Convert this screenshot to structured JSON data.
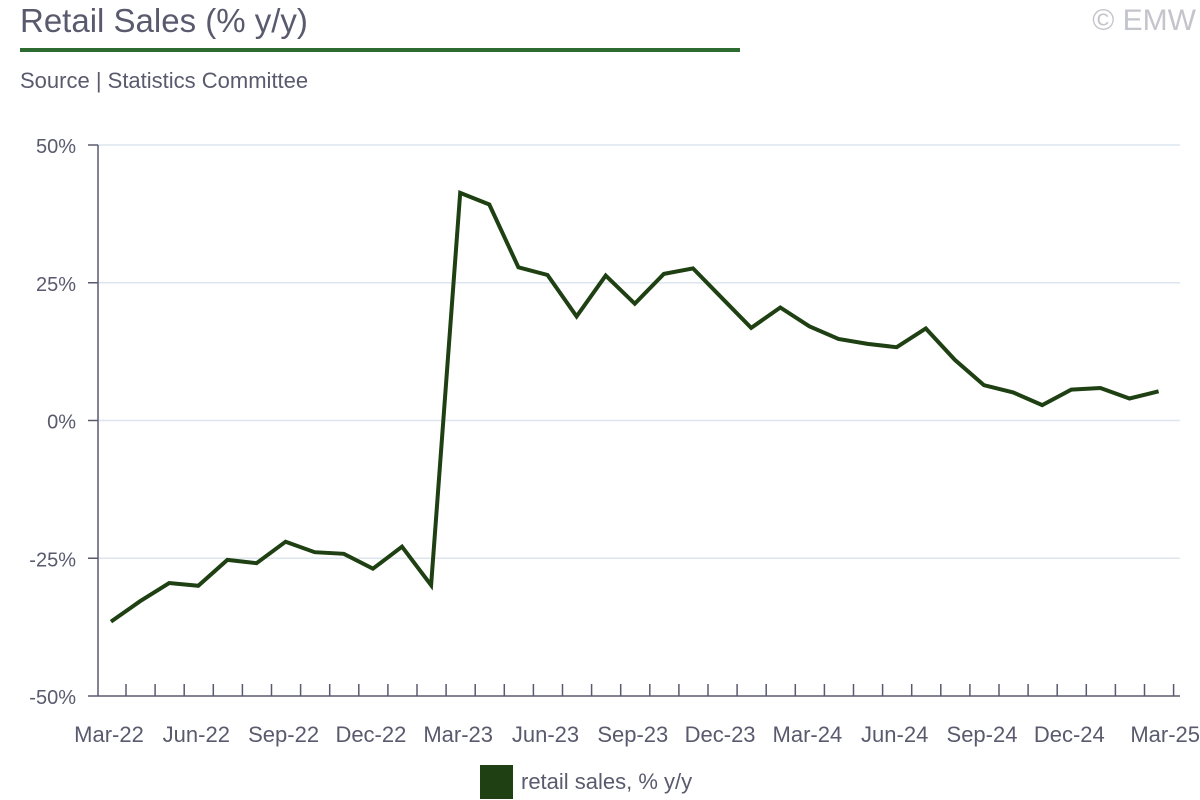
{
  "header": {
    "title": "Retail Sales (% y/y)",
    "subtitle": "Source | Statistics Committee",
    "copyright": "© EMW"
  },
  "colors": {
    "accent": "#2e6b30",
    "series": "#1e4012",
    "grid": "#dde6ef",
    "axis": "#5a5a6e"
  },
  "chart_data": {
    "type": "line",
    "title": "Retail Sales (% y/y)",
    "xlabel": "",
    "ylabel": "",
    "ylim": [
      -50,
      50
    ],
    "yticks": [
      50,
      25,
      0,
      -25,
      -50
    ],
    "ytick_labels": [
      "50%",
      "25%",
      "0%",
      "-25%",
      "-50%"
    ],
    "x_tick_labels": [
      "Mar-22",
      "Jun-22",
      "Sep-22",
      "Dec-22",
      "Mar-23",
      "Jun-23",
      "Sep-23",
      "Dec-23",
      "Mar-24",
      "Jun-24",
      "Sep-24",
      "Dec-24",
      "Mar-25"
    ],
    "grid": true,
    "legend": "bottom",
    "x": [
      "Mar-22",
      "Apr-22",
      "May-22",
      "Jun-22",
      "Jul-22",
      "Aug-22",
      "Sep-22",
      "Oct-22",
      "Nov-22",
      "Dec-22",
      "Jan-23",
      "Feb-23",
      "Mar-23",
      "Apr-23",
      "May-23",
      "Jun-23",
      "Jul-23",
      "Aug-23",
      "Sep-23",
      "Oct-23",
      "Nov-23",
      "Dec-23",
      "Jan-24",
      "Feb-24",
      "Mar-24",
      "Apr-24",
      "May-24",
      "Jun-24",
      "Jul-24",
      "Aug-24",
      "Sep-24",
      "Oct-24",
      "Nov-24",
      "Dec-24",
      "Jan-25",
      "Feb-25",
      "Mar-25"
    ],
    "series": [
      {
        "name": "retail sales, % y/y",
        "values": [
          -36.5,
          -32.8,
          -29.5,
          -30.0,
          -25.3,
          -25.9,
          -22.0,
          -23.9,
          -24.2,
          -26.9,
          -22.9,
          -29.9,
          41.3,
          39.2,
          27.8,
          26.4,
          18.9,
          26.3,
          21.2,
          26.6,
          27.6,
          22.2,
          16.8,
          20.5,
          17.1,
          14.8,
          13.9,
          13.3,
          16.7,
          11.0,
          6.4,
          5.1,
          2.8,
          5.6,
          5.9,
          4.0,
          5.3
        ]
      }
    ]
  }
}
